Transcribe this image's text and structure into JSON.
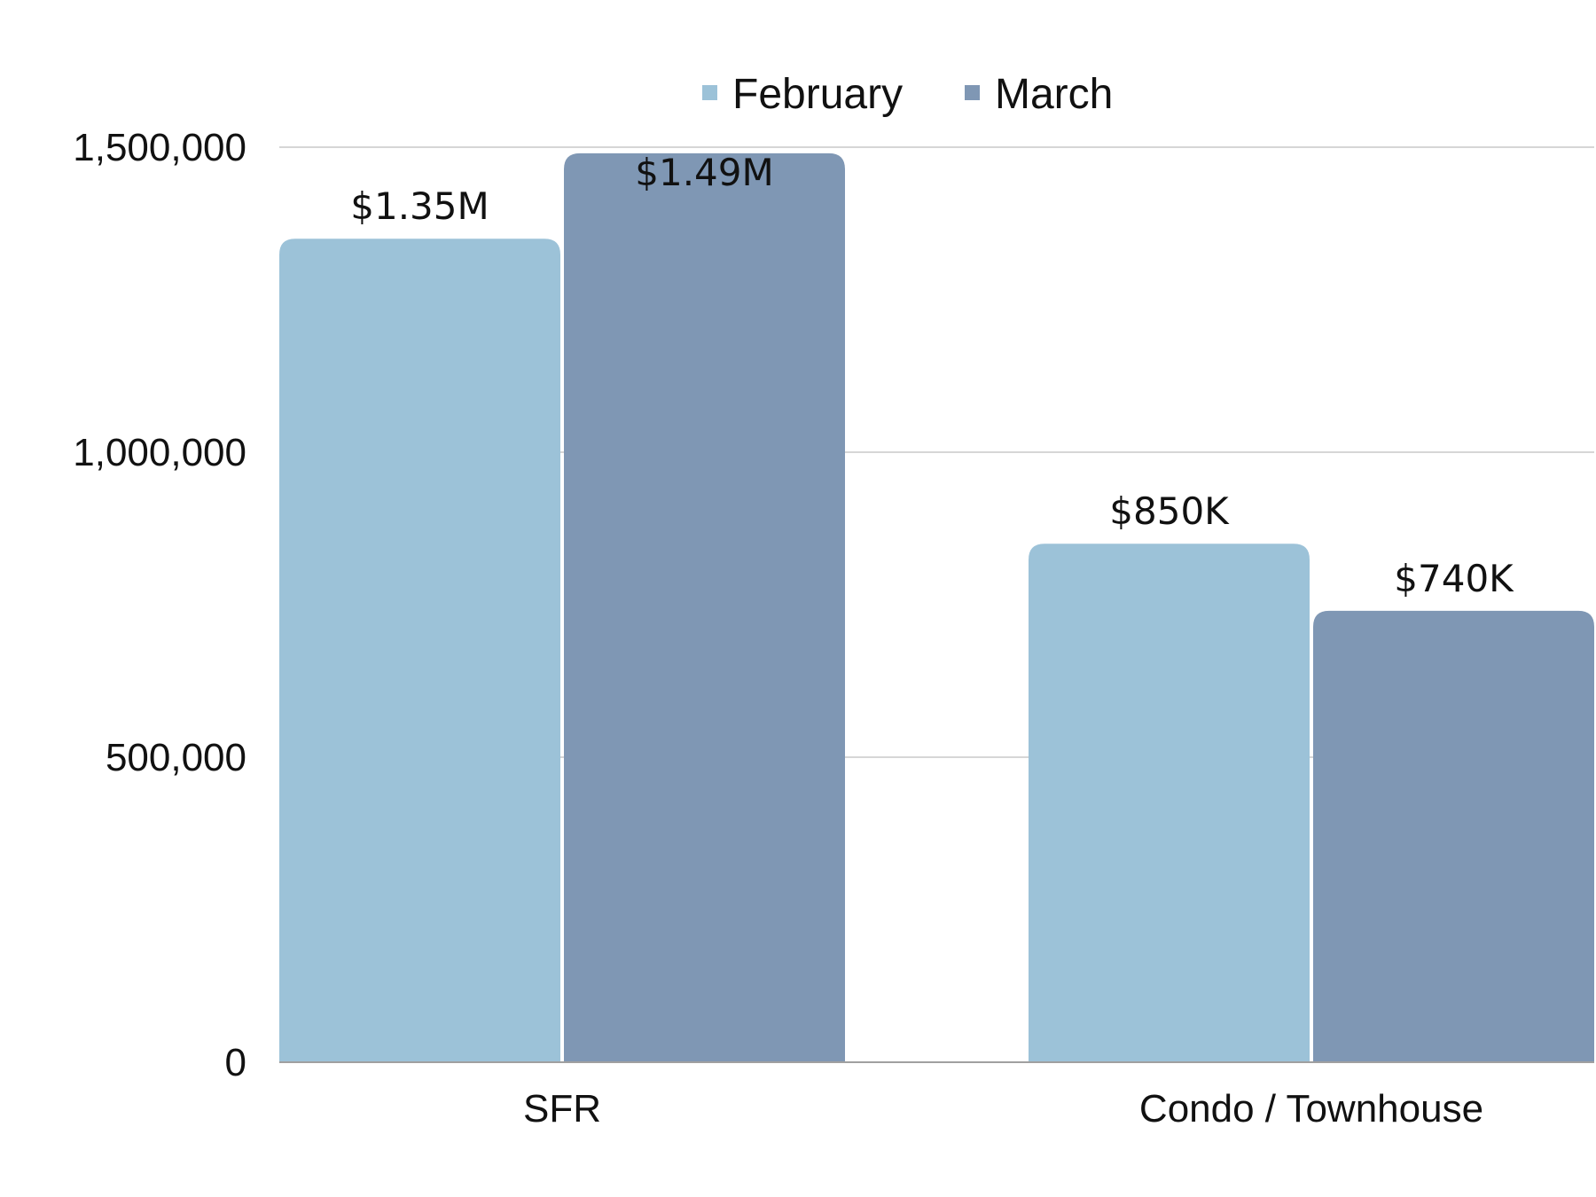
{
  "chart_data": {
    "type": "bar",
    "title": "",
    "xlabel": "",
    "ylabel": "",
    "categories": [
      "SFR",
      "Condo / Townhouse"
    ],
    "series": [
      {
        "name": "February",
        "color": "#9cc2d8",
        "values": [
          1350000,
          850000
        ],
        "labels": [
          "$1.35M",
          "$850K"
        ]
      },
      {
        "name": "March",
        "color": "#7f97b4",
        "values": [
          1490000,
          740000
        ],
        "labels": [
          "$1.49M",
          "$740K"
        ]
      }
    ],
    "ylim": [
      0,
      1500000
    ],
    "yticks": [
      0,
      500000,
      1000000,
      1500000
    ],
    "ytick_labels": [
      "0",
      "500,000",
      "1,000,000",
      "1,500,000"
    ],
    "grid": true,
    "legend": "top-center"
  }
}
